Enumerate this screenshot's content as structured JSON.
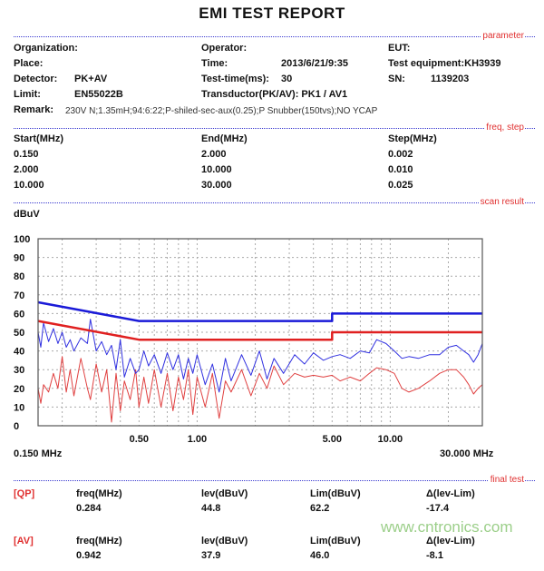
{
  "title": "EMI TEST REPORT",
  "sections": {
    "parameter": "parameter",
    "freq_step": "freq, step",
    "scan_result": "scan result",
    "final_test": "final test"
  },
  "params": {
    "organization_label": "Organization:",
    "organization": "",
    "operator_label": "Operator:",
    "operator": "",
    "eut_label": "EUT:",
    "eut": "",
    "place_label": "Place:",
    "time_label": "Time:",
    "time": "2013/6/21/9:35",
    "equipment": "Test equipment:KH3939",
    "detector_label": "Detector:",
    "detector": "PK+AV",
    "test_time_label": "Test-time(ms):",
    "test_time": "30",
    "sn_label": "SN:",
    "sn": "1139203",
    "limit_label": "Limit:",
    "limit": "EN55022B",
    "transductor": "Transductor(PK/AV): PK1  /  AV1",
    "remark_label": "Remark:",
    "remark": "230V N;1.35mH;94:6:22;P-shiled-sec-aux(0.25);P Snubber(150tvs);NO YCAP"
  },
  "freq_step": {
    "headers": [
      "Start(MHz)",
      "End(MHz)",
      "Step(MHz)"
    ],
    "rows": [
      [
        "0.150",
        "2.000",
        "0.002"
      ],
      [
        "2.000",
        "10.000",
        "0.010"
      ],
      [
        "10.000",
        "30.000",
        "0.025"
      ]
    ]
  },
  "chart_data": {
    "type": "line",
    "ylabel": "dBuV",
    "ylim": [
      0,
      100
    ],
    "yticks": [
      0,
      10,
      20,
      30,
      40,
      50,
      60,
      70,
      80,
      90,
      100
    ],
    "xscale": "log",
    "xlim": [
      0.15,
      30
    ],
    "xtick_labels": [
      {
        "v": 0.5,
        "t": "0.50"
      },
      {
        "v": 1,
        "t": "1.00"
      },
      {
        "v": 5,
        "t": "5.00"
      },
      {
        "v": 10,
        "t": "10.00"
      }
    ],
    "xmin_label": "0.150 MHz",
    "xmax_label": "30.000 MHz",
    "grid": true,
    "colors": {
      "peak": "#2020d0",
      "average": "#e03030"
    },
    "series": [
      {
        "id": "qp-limit",
        "color": "#1a1ad8",
        "x": [
          0.15,
          0.5,
          5,
          5,
          30
        ],
        "y": [
          66,
          56,
          56,
          60,
          60
        ]
      },
      {
        "id": "av-limit",
        "color": "#e02020",
        "x": [
          0.15,
          0.5,
          5,
          5,
          30
        ],
        "y": [
          56,
          46,
          46,
          50,
          50
        ]
      },
      {
        "id": "peak-trace",
        "color": "#3030e0",
        "x": [
          0.15,
          0.155,
          0.16,
          0.17,
          0.18,
          0.19,
          0.2,
          0.21,
          0.22,
          0.23,
          0.25,
          0.27,
          0.28,
          0.3,
          0.32,
          0.34,
          0.36,
          0.38,
          0.4,
          0.42,
          0.45,
          0.48,
          0.5,
          0.53,
          0.56,
          0.6,
          0.65,
          0.7,
          0.75,
          0.8,
          0.85,
          0.9,
          0.95,
          1.0,
          1.1,
          1.2,
          1.3,
          1.4,
          1.5,
          1.7,
          1.9,
          2.1,
          2.3,
          2.5,
          2.8,
          3.2,
          3.6,
          4.0,
          4.5,
          5.0,
          5.5,
          6.2,
          7.0,
          7.8,
          8.5,
          9.5,
          10.5,
          11.5,
          12.5,
          14,
          16,
          18,
          20,
          22,
          24,
          25.5,
          27,
          28.5,
          30
        ],
        "y": [
          50,
          42,
          55,
          45,
          52,
          44,
          50,
          42,
          46,
          40,
          47,
          44,
          57,
          40,
          45,
          38,
          43,
          30,
          46,
          26,
          36,
          28,
          30,
          40,
          32,
          38,
          28,
          39,
          30,
          38,
          25,
          36,
          28,
          38,
          22,
          33,
          18,
          36,
          24,
          38,
          27,
          40,
          25,
          36,
          28,
          38,
          33,
          39,
          35,
          37,
          38,
          36,
          40,
          39,
          46,
          44,
          40,
          36,
          37,
          36,
          38,
          38,
          42,
          43,
          40,
          38,
          34,
          38,
          44
        ]
      },
      {
        "id": "average-trace",
        "color": "#e04040",
        "x": [
          0.15,
          0.155,
          0.16,
          0.17,
          0.18,
          0.19,
          0.2,
          0.21,
          0.22,
          0.23,
          0.25,
          0.27,
          0.28,
          0.3,
          0.32,
          0.34,
          0.36,
          0.38,
          0.4,
          0.42,
          0.45,
          0.48,
          0.5,
          0.53,
          0.56,
          0.6,
          0.65,
          0.7,
          0.75,
          0.8,
          0.85,
          0.9,
          0.95,
          1.0,
          1.1,
          1.2,
          1.3,
          1.4,
          1.5,
          1.7,
          1.9,
          2.1,
          2.3,
          2.5,
          2.8,
          3.2,
          3.6,
          4.0,
          4.5,
          5.0,
          5.5,
          6.2,
          7.0,
          7.8,
          8.5,
          9.5,
          10.5,
          11.5,
          12.5,
          14,
          16,
          18,
          20,
          22,
          24,
          25.5,
          27,
          28.5,
          30
        ],
        "y": [
          20,
          12,
          22,
          18,
          28,
          20,
          37,
          18,
          30,
          16,
          36,
          20,
          14,
          33,
          18,
          30,
          2,
          28,
          8,
          24,
          14,
          30,
          10,
          26,
          12,
          30,
          10,
          28,
          8,
          26,
          14,
          30,
          6,
          26,
          10,
          28,
          4,
          24,
          18,
          30,
          16,
          28,
          20,
          32,
          22,
          28,
          26,
          27,
          26,
          27,
          24,
          26,
          24,
          28,
          31,
          30,
          28,
          20,
          18,
          20,
          24,
          28,
          30,
          30,
          26,
          22,
          17,
          20,
          22
        ]
      }
    ]
  },
  "final_test": {
    "rows": [
      {
        "tag": "[QP]",
        "headers": [
          "freq(MHz)",
          "lev(dBuV)",
          "Lim(dBuV)",
          "Δ(lev-Lim)"
        ],
        "values": [
          "0.284",
          "44.8",
          "62.2",
          "-17.4"
        ]
      },
      {
        "tag": "[AV]",
        "headers": [
          "freq(MHz)",
          "lev(dBuV)",
          "Lim(dBuV)",
          "Δ(lev-Lim)"
        ],
        "values": [
          "0.942",
          "37.9",
          "46.0",
          "-8.1"
        ]
      }
    ]
  },
  "watermark": "www.cntronics.com"
}
